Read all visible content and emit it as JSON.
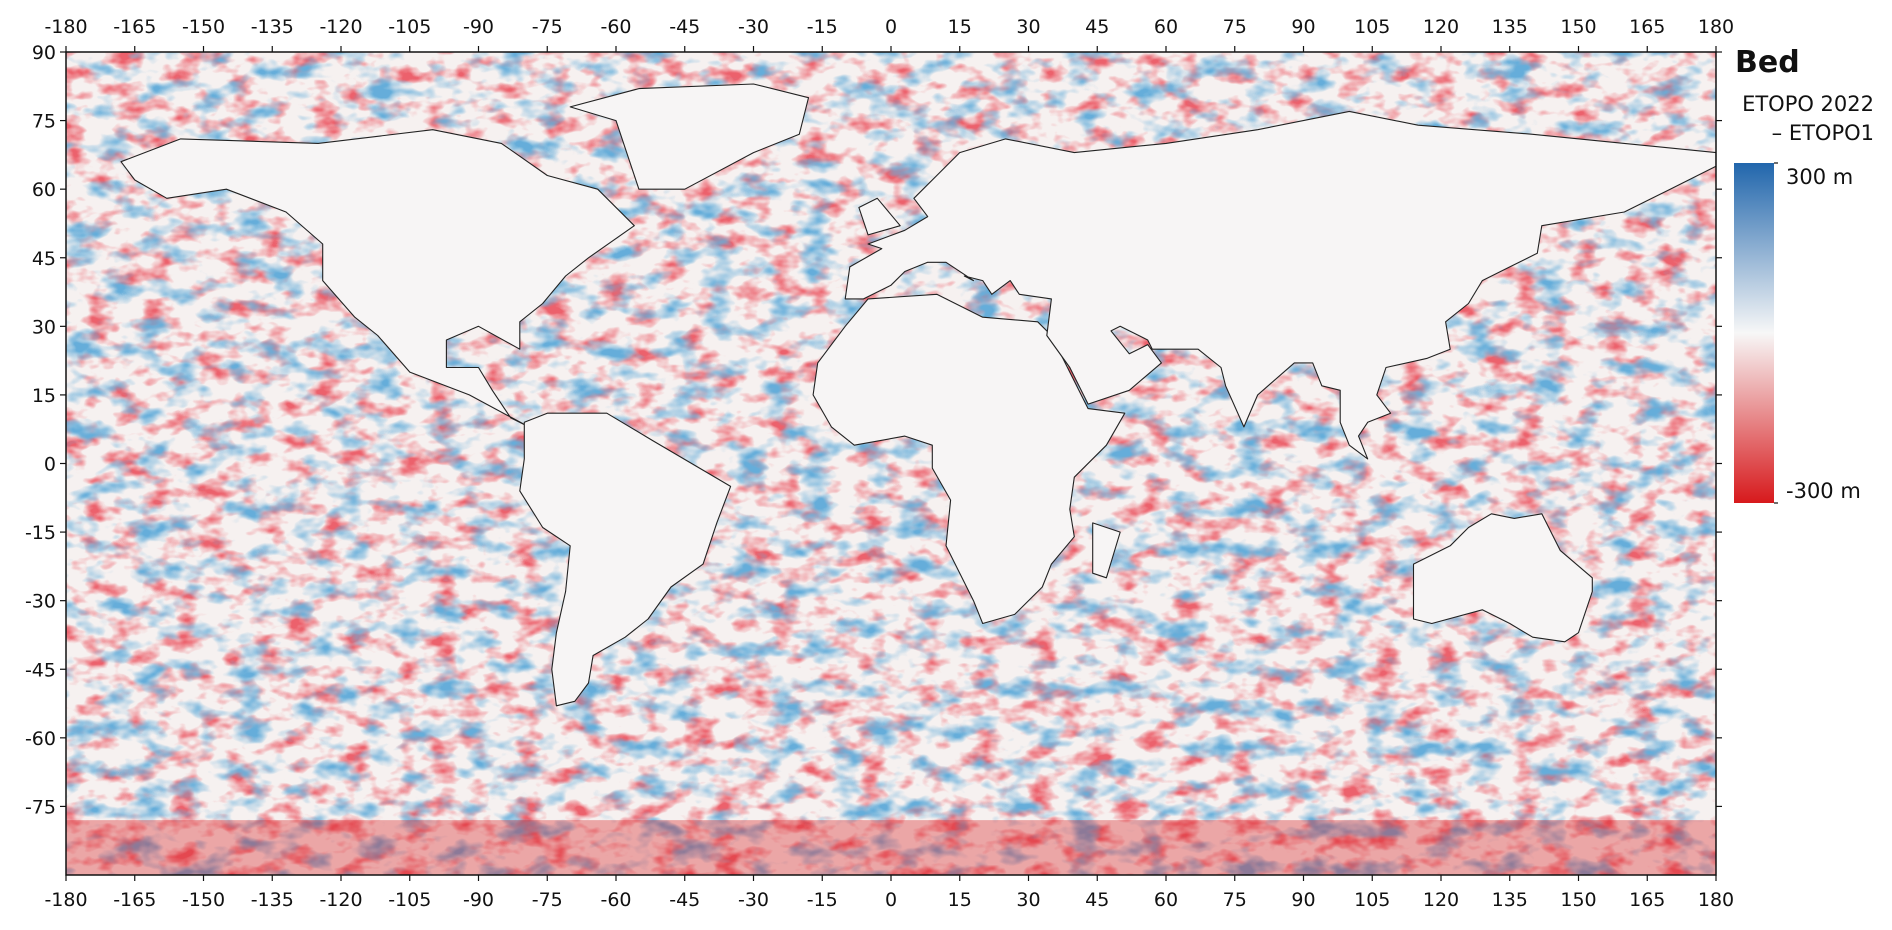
{
  "chart_data": {
    "type": "map",
    "title": "Bed",
    "subtitle": [
      "ETOPO 2022",
      "– ETOPO1"
    ],
    "xlim": [
      -180,
      180
    ],
    "ylim": [
      -90,
      90
    ],
    "xticks": [
      -180,
      -165,
      -150,
      -135,
      -120,
      -105,
      -90,
      -75,
      -60,
      -45,
      -30,
      -15,
      0,
      15,
      30,
      45,
      60,
      75,
      90,
      105,
      120,
      135,
      150,
      165,
      180
    ],
    "yticks": [
      90,
      75,
      60,
      45,
      30,
      15,
      0,
      -15,
      -30,
      -45,
      -60,
      -75
    ],
    "colorbar": {
      "lim": [
        -300,
        300
      ],
      "ticks": [
        {
          "value": 300,
          "label": "300 m"
        },
        {
          "value": -300,
          "label": "-300 m"
        }
      ],
      "colors": [
        "#d7191c",
        "#f7f7f7",
        "#2166ac"
      ]
    }
  }
}
